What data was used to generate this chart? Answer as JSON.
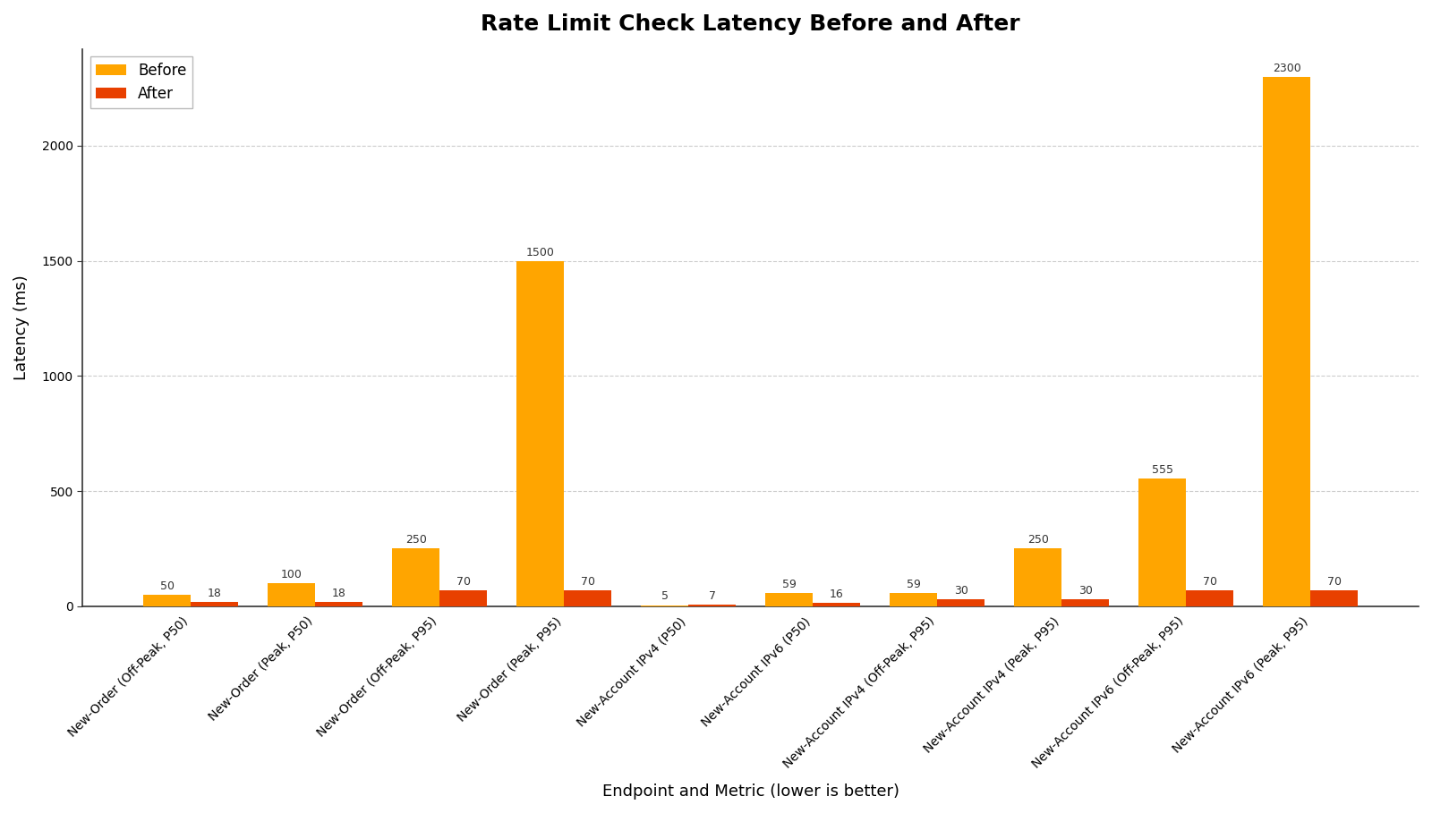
{
  "title": "Rate Limit Check Latency Before and After",
  "xlabel": "Endpoint and Metric (lower is better)",
  "ylabel": "Latency (ms)",
  "categories": [
    "New-Order (Off-Peak, P50)",
    "New-Order (Peak, P50)",
    "New-Order (Off-Peak, P95)",
    "New-Order (Peak, P95)",
    "New-Account IPv4 (P50)",
    "New-Account IPv6 (P50)",
    "New-Account IPv4 (Off-Peak, P95)",
    "New-Account IPv4 (Peak, P95)",
    "New-Account IPv6 (Off-Peak, P95)",
    "New-Account IPv6 (Peak, P95)"
  ],
  "before": [
    50,
    100,
    250,
    1500,
    5,
    59,
    59,
    250,
    555,
    2300
  ],
  "after": [
    18,
    18,
    70,
    70,
    7,
    16,
    30,
    30,
    70,
    70
  ],
  "color_before": "#FFA500",
  "color_after": "#E84000",
  "background_color": "#FFFFFF",
  "bar_width": 0.38,
  "ylim": [
    0,
    2420
  ],
  "yticks": [
    0,
    500,
    1000,
    1500,
    2000
  ],
  "title_fontsize": 18,
  "axis_label_fontsize": 13,
  "tick_fontsize": 10,
  "value_fontsize": 9,
  "legend_fontsize": 12,
  "grid_color": "#CCCCCC",
  "spine_color": "#333333"
}
